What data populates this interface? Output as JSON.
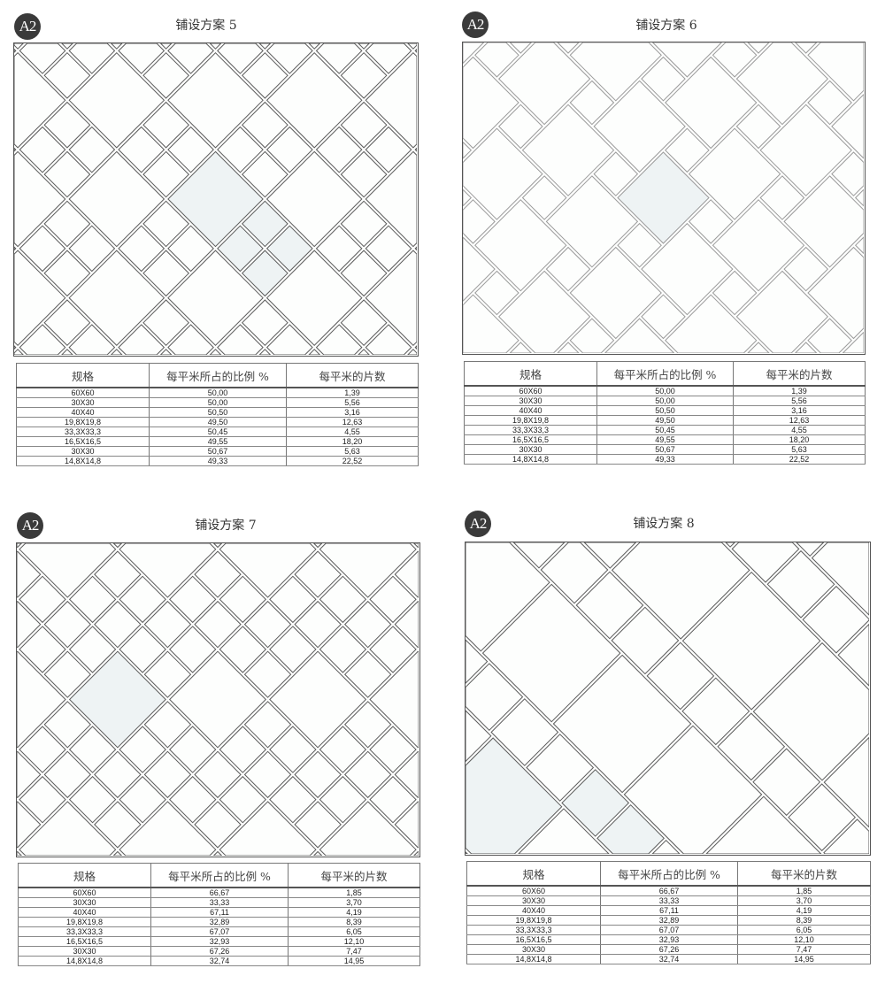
{
  "panels": [
    {
      "badge": "A2",
      "title": "铺设方案 5",
      "headers": [
        "规格",
        "每平米所占的比例 %",
        "每平米的片数"
      ],
      "rows": [
        [
          "60X60",
          "50,00",
          "1,39"
        ],
        [
          "30X30",
          "50,00",
          "5,56"
        ],
        [
          "40X40",
          "50,50",
          "3,16"
        ],
        [
          "19,8X19,8",
          "49,50",
          "12,63"
        ],
        [
          "33,3X33,3",
          "50,45",
          "4,55"
        ],
        [
          "16,5X16,5",
          "49,55",
          "18,20"
        ],
        [
          "30X30",
          "50,67",
          "5,63"
        ],
        [
          "14,8X14,8",
          "49,33",
          "22,52"
        ]
      ]
    },
    {
      "badge": "A2",
      "title": "铺设方案 6",
      "headers": [
        "规格",
        "每平米所占的比例 %",
        "每平米的片数"
      ],
      "rows": [
        [
          "60X60",
          "50,00",
          "1,39"
        ],
        [
          "30X30",
          "50,00",
          "5,56"
        ],
        [
          "40X40",
          "50,50",
          "3,16"
        ],
        [
          "19,8X19,8",
          "49,50",
          "12,63"
        ],
        [
          "33,3X33,3",
          "50,45",
          "4,55"
        ],
        [
          "16,5X16,5",
          "49,55",
          "18,20"
        ],
        [
          "30X30",
          "50,67",
          "5,63"
        ],
        [
          "14,8X14,8",
          "49,33",
          "22,52"
        ]
      ]
    },
    {
      "badge": "A2",
      "title": "铺设方案 7",
      "headers": [
        "规格",
        "每平米所占的比例 %",
        "每平米的片数"
      ],
      "rows": [
        [
          "60X60",
          "66,67",
          "1,85"
        ],
        [
          "30X30",
          "33,33",
          "3,70"
        ],
        [
          "40X40",
          "67,11",
          "4,19"
        ],
        [
          "19,8X19,8",
          "32,89",
          "8,39"
        ],
        [
          "33,3X33,3",
          "67,07",
          "6,05"
        ],
        [
          "16,5X16,5",
          "32,93",
          "12,10"
        ],
        [
          "30X30",
          "67,26",
          "7,47"
        ],
        [
          "14,8X14,8",
          "32,74",
          "14,95"
        ]
      ]
    },
    {
      "badge": "A2",
      "title": "铺设方案 8",
      "headers": [
        "规格",
        "每平米所占的比例 %",
        "每平米的片数"
      ],
      "rows": [
        [
          "60X60",
          "66,67",
          "1,85"
        ],
        [
          "30X30",
          "33,33",
          "3,70"
        ],
        [
          "40X40",
          "67,11",
          "4,19"
        ],
        [
          "19,8X19,8",
          "32,89",
          "8,39"
        ],
        [
          "33,3X33,3",
          "67,07",
          "6,05"
        ],
        [
          "16,5X16,5",
          "32,93",
          "12,10"
        ],
        [
          "30X30",
          "67,26",
          "7,47"
        ],
        [
          "14,8X14,8",
          "32,74",
          "14,95"
        ]
      ]
    }
  ],
  "colors": {
    "grout": "#5a5a5a",
    "tile": "#fdfefd",
    "accent_tile": "#eef3f4",
    "badge": "#3a3a3a"
  }
}
